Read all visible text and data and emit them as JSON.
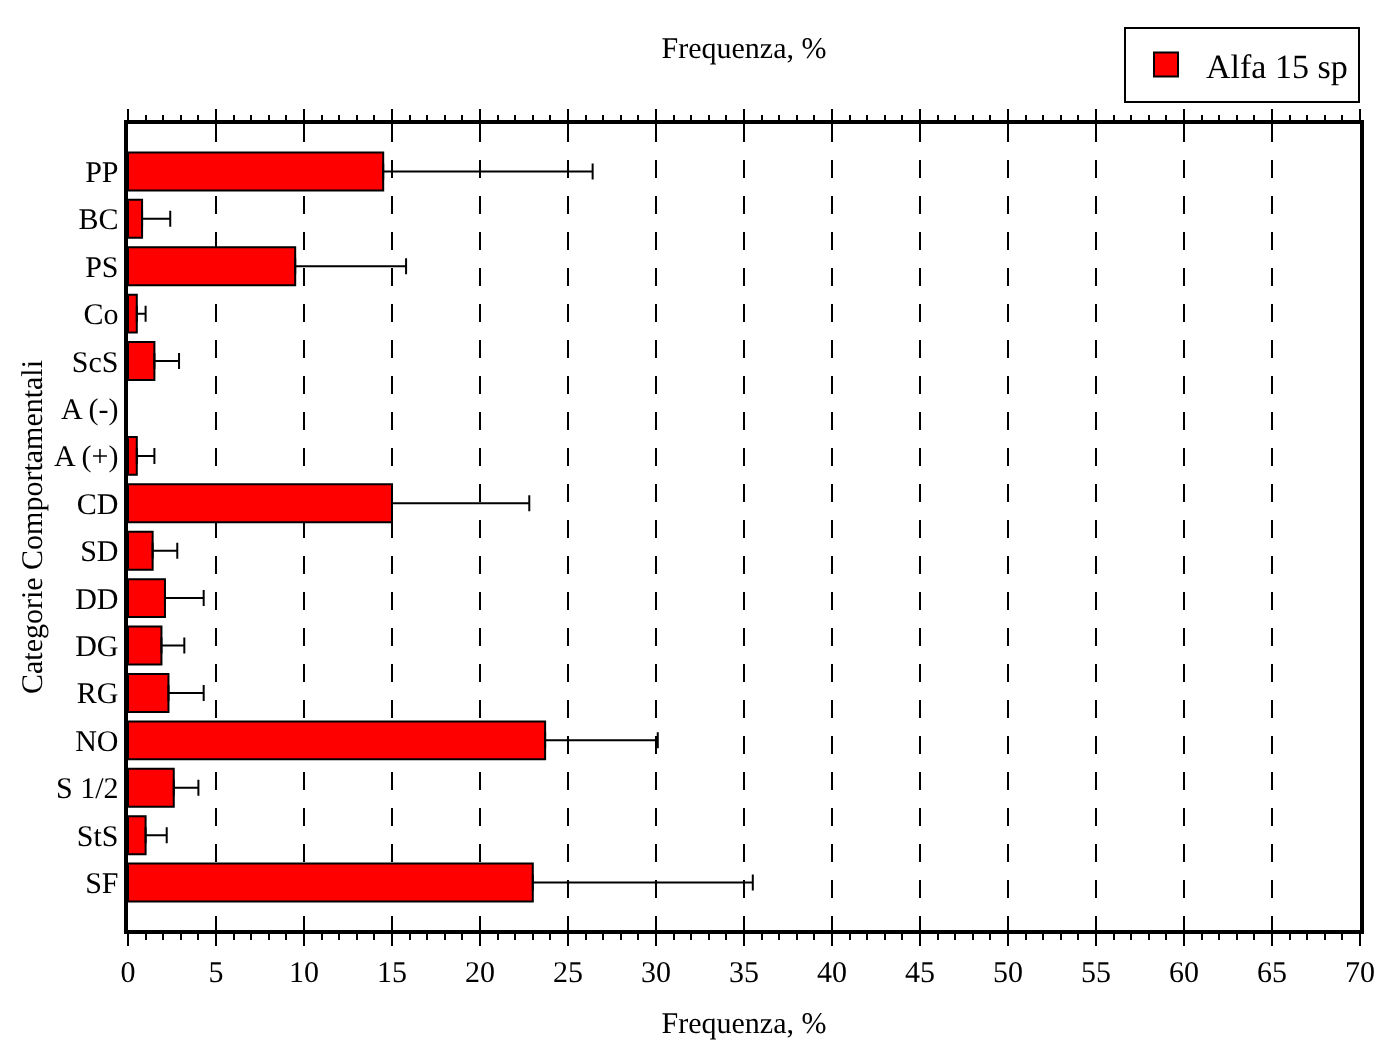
{
  "chart_data": {
    "type": "bar",
    "orientation": "horizontal",
    "title": "Frequenza, %",
    "xlabel": "Frequenza, %",
    "ylabel": "Categorie Comportamentali",
    "categories": [
      "PP",
      "BC",
      "PS",
      "Co",
      "ScS",
      "A (-)",
      "A (+)",
      "CD",
      "SD",
      "DD",
      "DG",
      "RG",
      "NO",
      "S 1/2",
      "StS",
      "SF"
    ],
    "series": [
      {
        "name": "Alfa 15 sp",
        "color": "#ff0000",
        "values": [
          14.5,
          0.8,
          9.5,
          0.5,
          1.5,
          null,
          0.5,
          15.0,
          1.4,
          2.1,
          1.9,
          2.3,
          23.7,
          2.6,
          1.0,
          23.0
        ],
        "errors": [
          [
            14.5,
            26.4
          ],
          [
            0.8,
            2.4
          ],
          [
            9.5,
            15.8
          ],
          [
            0.5,
            1.0
          ],
          [
            1.5,
            2.9
          ],
          null,
          [
            0.5,
            1.5
          ],
          [
            15.0,
            22.8
          ],
          [
            1.4,
            2.8
          ],
          [
            2.1,
            4.3
          ],
          [
            1.9,
            3.2
          ],
          [
            2.3,
            4.3
          ],
          [
            23.7,
            30.1
          ],
          [
            2.6,
            4.0
          ],
          [
            1.0,
            2.2
          ],
          [
            23.0,
            35.5
          ]
        ]
      }
    ],
    "xlim": [
      0,
      70
    ],
    "xticks": [
      0,
      5,
      10,
      15,
      20,
      25,
      30,
      35,
      40,
      45,
      50,
      55,
      60,
      65,
      70
    ],
    "grid": "x",
    "legend": "top right"
  }
}
